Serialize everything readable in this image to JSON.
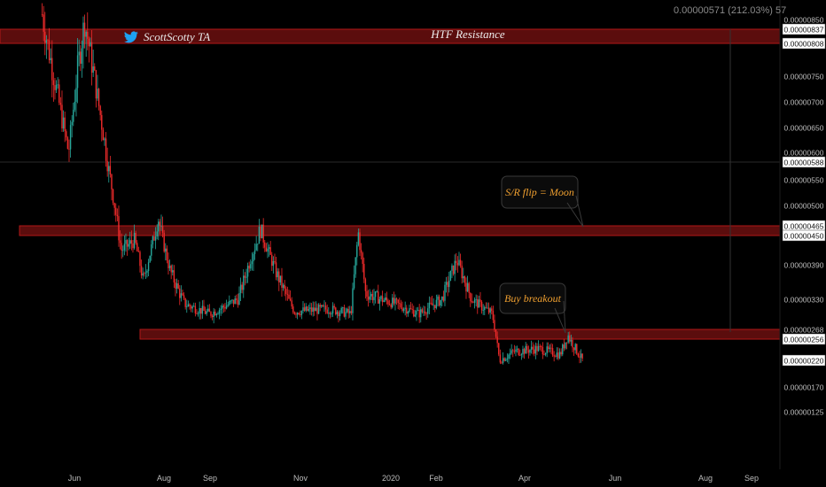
{
  "header": {
    "readout": "0.00000571 (212.03%) 57"
  },
  "author": {
    "name": "ScottScotty TA",
    "icon": "twitter-bird-icon",
    "icon_color": "#1da1f2"
  },
  "colors": {
    "up": "#26a69a",
    "down": "#ef2b2b",
    "zone": "#6b0f0f",
    "annotation_text": "#f0a030",
    "zone_label_text": "#eeeeee"
  },
  "chart_data": {
    "type": "candlestick",
    "y_axis_labels": [
      "0.00000850",
      "0.00000837",
      "0.00000808",
      "0.00000750",
      "0.00000700",
      "0.00000650",
      "0.00000600",
      "0.00000588",
      "0.00000550",
      "0.00000500",
      "0.00000465",
      "0.00000450",
      "0.00000390",
      "0.00000330",
      "0.00000268",
      "0.00000256",
      "0.00000220",
      "0.00000170",
      "0.00000125"
    ],
    "highlighted_y_labels": [
      "0.00000837",
      "0.00000808",
      "0.00000588",
      "0.00000465",
      "0.00000450",
      "0.00000256",
      "0.00000220"
    ],
    "x_axis_labels": [
      "Jun",
      "Aug",
      "Sep",
      "Nov",
      "2020",
      "Feb",
      "Apr",
      "Jun",
      "Aug",
      "Sep"
    ],
    "zones": [
      {
        "label": "HTF Resistance",
        "low": 8.08e-06,
        "high": 8.37e-06
      },
      {
        "label": "",
        "low": 4.5e-06,
        "high": 4.65e-06
      },
      {
        "label": "",
        "low": 2.56e-06,
        "high": 2.68e-06
      }
    ],
    "lines": [
      5.88e-06
    ],
    "annotations": [
      {
        "text": "S/R flip = Moon"
      },
      {
        "text": "Buy breakout"
      }
    ],
    "close_path": [
      {
        "t": "2019-05-10",
        "v": 8.6e-06
      },
      {
        "t": "2019-05-20",
        "v": 7.2e-06
      },
      {
        "t": "2019-05-28",
        "v": 6e-06
      },
      {
        "t": "2019-06-03",
        "v": 7.6e-06
      },
      {
        "t": "2019-06-08",
        "v": 8.5e-06
      },
      {
        "t": "2019-06-15",
        "v": 7.4e-06
      },
      {
        "t": "2019-06-25",
        "v": 5.6e-06
      },
      {
        "t": "2019-07-03",
        "v": 4.2e-06
      },
      {
        "t": "2019-07-12",
        "v": 4.4e-06
      },
      {
        "t": "2019-07-18",
        "v": 3.6e-06
      },
      {
        "t": "2019-07-28",
        "v": 4.8e-06
      },
      {
        "t": "2019-08-05",
        "v": 3.8e-06
      },
      {
        "t": "2019-08-15",
        "v": 3.2e-06
      },
      {
        "t": "2019-09-01",
        "v": 3e-06
      },
      {
        "t": "2019-09-20",
        "v": 3.3e-06
      },
      {
        "t": "2019-10-05",
        "v": 4.6e-06
      },
      {
        "t": "2019-10-15",
        "v": 3.8e-06
      },
      {
        "t": "2019-10-28",
        "v": 3.05e-06
      },
      {
        "t": "2019-11-20",
        "v": 3.1e-06
      },
      {
        "t": "2019-12-05",
        "v": 3e-06
      },
      {
        "t": "2019-12-10",
        "v": 4.55e-06
      },
      {
        "t": "2019-12-15",
        "v": 3.4e-06
      },
      {
        "t": "2020-01-05",
        "v": 3.2e-06
      },
      {
        "t": "2020-01-20",
        "v": 3e-06
      },
      {
        "t": "2020-02-05",
        "v": 3.3e-06
      },
      {
        "t": "2020-02-15",
        "v": 4e-06
      },
      {
        "t": "2020-02-25",
        "v": 3.3e-06
      },
      {
        "t": "2020-03-10",
        "v": 3e-06
      },
      {
        "t": "2020-03-15",
        "v": 2.2e-06
      },
      {
        "t": "2020-03-25",
        "v": 2.35e-06
      },
      {
        "t": "2020-04-10",
        "v": 2.4e-06
      },
      {
        "t": "2020-04-25",
        "v": 2.3e-06
      },
      {
        "t": "2020-04-30",
        "v": 2.62e-06
      },
      {
        "t": "2020-05-10",
        "v": 2.2e-06
      }
    ]
  }
}
